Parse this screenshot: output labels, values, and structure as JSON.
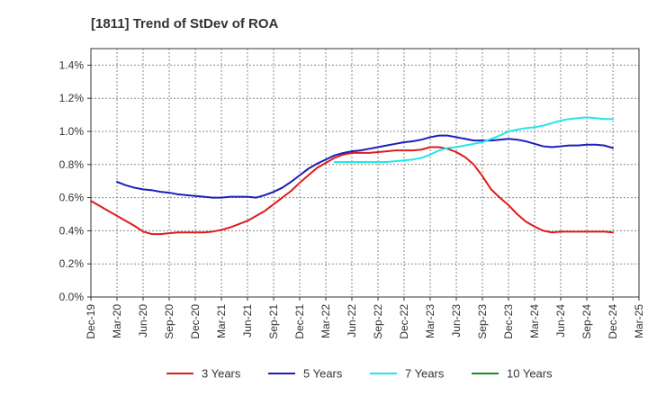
{
  "chart_data": {
    "type": "line",
    "title": "[1811]  Trend of StDev of ROA",
    "xlabel": "",
    "ylabel": "",
    "x_ticks": [
      "Dec-19",
      "Mar-20",
      "Jun-20",
      "Sep-20",
      "Dec-20",
      "Mar-21",
      "Jun-21",
      "Sep-21",
      "Dec-21",
      "Mar-22",
      "Jun-22",
      "Sep-22",
      "Dec-22",
      "Mar-23",
      "Jun-23",
      "Sep-23",
      "Dec-23",
      "Mar-24",
      "Jun-24",
      "Sep-24",
      "Dec-24",
      "Mar-25"
    ],
    "y_ticks": [
      "0.0%",
      "0.2%",
      "0.4%",
      "0.6%",
      "0.8%",
      "1.0%",
      "1.2%",
      "1.4%"
    ],
    "ylim": [
      0,
      1.5
    ],
    "grid": true,
    "legend_position": "bottom",
    "series": [
      {
        "name": "3 Years",
        "color": "#dd1c1c",
        "values": [
          0.58,
          0.55,
          0.52,
          0.49,
          0.46,
          0.43,
          0.395,
          0.38,
          0.38,
          0.385,
          0.39,
          0.39,
          0.39,
          0.39,
          0.395,
          0.405,
          0.42,
          0.44,
          0.46,
          0.49,
          0.52,
          0.56,
          0.6,
          0.64,
          0.69,
          0.735,
          0.78,
          0.81,
          0.84,
          0.86,
          0.87,
          0.87,
          0.87,
          0.875,
          0.88,
          0.885,
          0.885,
          0.885,
          0.89,
          0.905,
          0.905,
          0.895,
          0.875,
          0.845,
          0.8,
          0.73,
          0.65,
          0.6,
          0.555,
          0.5,
          0.455,
          0.425,
          0.4,
          0.39,
          0.395,
          0.395,
          0.395,
          0.395,
          0.395,
          0.395,
          0.39
        ]
      },
      {
        "name": "5 Years",
        "color": "#1c1cbb",
        "values": [
          null,
          null,
          null,
          0.695,
          0.675,
          0.66,
          0.65,
          0.645,
          0.635,
          0.63,
          0.62,
          0.615,
          0.61,
          0.605,
          0.6,
          0.6,
          0.605,
          0.605,
          0.605,
          0.6,
          0.615,
          0.635,
          0.66,
          0.695,
          0.735,
          0.775,
          0.805,
          0.83,
          0.855,
          0.87,
          0.88,
          0.885,
          0.895,
          0.905,
          0.915,
          0.925,
          0.935,
          0.94,
          0.95,
          0.965,
          0.975,
          0.975,
          0.965,
          0.955,
          0.945,
          0.945,
          0.945,
          0.95,
          0.955,
          0.95,
          0.94,
          0.925,
          0.91,
          0.905,
          0.91,
          0.915,
          0.915,
          0.92,
          0.92,
          0.915,
          0.9
        ]
      },
      {
        "name": "7 Years",
        "color": "#22e6e6",
        "values": [
          null,
          null,
          null,
          null,
          null,
          null,
          null,
          null,
          null,
          null,
          null,
          null,
          null,
          null,
          null,
          null,
          null,
          null,
          null,
          null,
          null,
          null,
          null,
          null,
          null,
          null,
          null,
          null,
          0.815,
          0.815,
          0.815,
          0.815,
          0.815,
          0.815,
          0.815,
          0.82,
          0.825,
          0.83,
          0.84,
          0.86,
          0.885,
          0.9,
          0.905,
          0.915,
          0.925,
          0.935,
          0.955,
          0.975,
          1.0,
          1.01,
          1.02,
          1.025,
          1.035,
          1.05,
          1.065,
          1.075,
          1.08,
          1.085,
          1.08,
          1.075,
          1.075
        ]
      },
      {
        "name": "10 Years",
        "color": "#1c8c1c",
        "values": []
      }
    ]
  }
}
